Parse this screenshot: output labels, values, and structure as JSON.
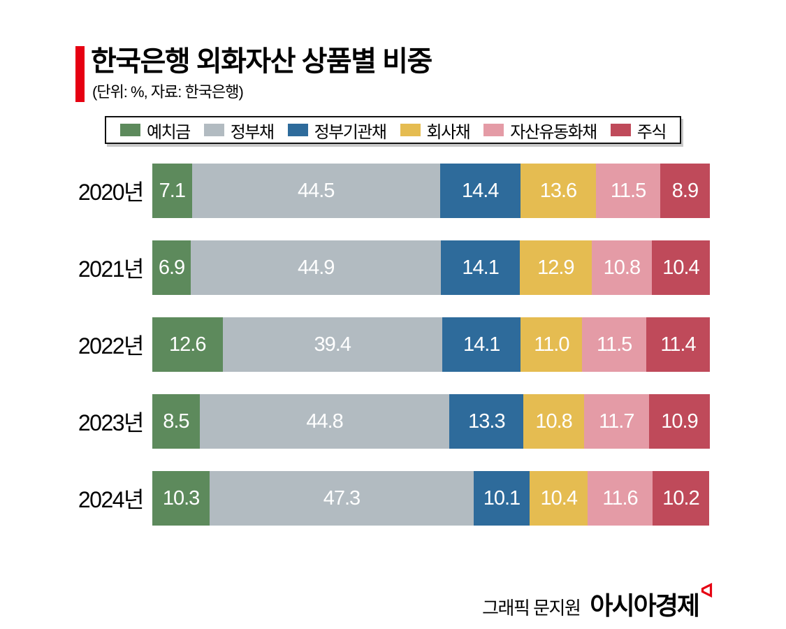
{
  "header": {
    "title": "한국은행 외화자산 상품별 비중",
    "subtitle": "(단위: %, 자료: 한국은행)"
  },
  "chart_data": {
    "type": "bar",
    "stacked": true,
    "orientation": "horizontal",
    "unit": "%",
    "xlim": [
      0,
      100
    ],
    "value_decimals": 1,
    "legend_position": "top",
    "categories": [
      "2020년",
      "2021년",
      "2022년",
      "2023년",
      "2024년"
    ],
    "series": [
      {
        "name": "예치금",
        "color": "#5d8a5c",
        "values": [
          7.1,
          6.9,
          12.6,
          8.5,
          10.3
        ]
      },
      {
        "name": "정부채",
        "color": "#b2bbc1",
        "values": [
          44.5,
          44.9,
          39.4,
          44.8,
          47.3
        ]
      },
      {
        "name": "정부기관채",
        "color": "#2e6b9b",
        "values": [
          14.4,
          14.1,
          14.1,
          13.3,
          10.1
        ]
      },
      {
        "name": "회사채",
        "color": "#e5bc51",
        "values": [
          13.6,
          12.9,
          11.0,
          10.8,
          10.4
        ]
      },
      {
        "name": "자산유동화채",
        "color": "#e49ba6",
        "values": [
          11.5,
          10.8,
          11.5,
          11.7,
          11.6
        ]
      },
      {
        "name": "주식",
        "color": "#bf4a5a",
        "values": [
          8.9,
          10.4,
          11.4,
          10.9,
          10.2
        ]
      }
    ]
  },
  "footer": {
    "credit": "그래픽 문지원",
    "brand": "아시아경제",
    "logo": "asiae-flag-icon",
    "logo_color": "#e60012"
  },
  "colors": {
    "accent_bar": "#e60012",
    "legend_border": "#111111",
    "bar_label_text": "#ffffff"
  }
}
